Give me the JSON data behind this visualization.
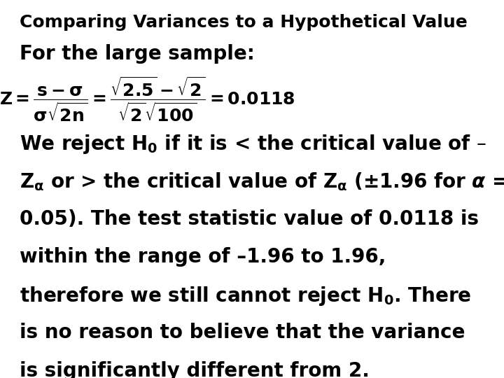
{
  "title": "Comparing Variances to a Hypothetical Value",
  "line2": "For the large sample:",
  "formula": "Z = \\frac{s-\\sigma}{\\sigma\\sqrt{2n}} = \\frac{\\sqrt{2.5}-\\sqrt{2}}{\\sqrt{2}\\sqrt{100}} = 0.0118",
  "paragraph": [
    "We reject $\\mathbf{H_0}$ if it is < the critical value of –",
    "$\\mathbf{Z_\\alpha}$ or > the critical value of $\\mathbf{Z_\\alpha}$ (±1.96 for $\\boldsymbol{\\alpha}$ =",
    "0.05). The test statistic value of 0.0118 is",
    "within the range of –1.96 to 1.96,",
    "therefore we still cannot reject $\\mathbf{H_0}$. There",
    "is no reason to believe that the variance",
    "is significantly different from 2."
  ],
  "bg_color": "#ffffff",
  "text_color": "#000000",
  "title_fontsize": 18,
  "bold_fontsize": 20,
  "formula_fontsize": 18,
  "para_fontsize": 20
}
